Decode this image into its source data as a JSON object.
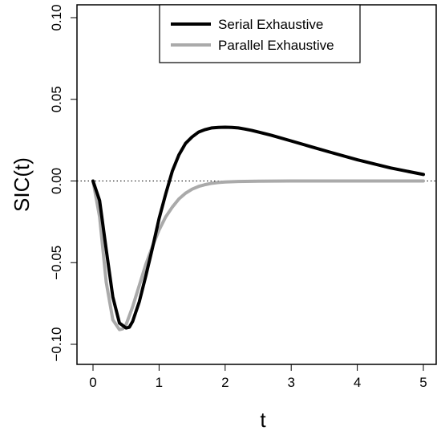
{
  "chart_data": {
    "type": "line",
    "title": "",
    "xlabel": "t",
    "ylabel": "SIC(t)",
    "xlim": [
      0,
      5
    ],
    "ylim": [
      -0.1,
      0.1
    ],
    "x_ticks": [
      "0",
      "1",
      "2",
      "3",
      "4",
      "5"
    ],
    "y_ticks": [
      "−0.10",
      "−0.05",
      "0.00",
      "0.05",
      "0.10"
    ],
    "reference_line": {
      "y": 0,
      "style": "dotted"
    },
    "legend_position": "top-right",
    "series": [
      {
        "name": "Serial Exhaustive",
        "color": "#000000",
        "x": [
          0,
          0.1,
          0.2,
          0.3,
          0.4,
          0.5,
          0.55,
          0.6,
          0.7,
          0.8,
          0.9,
          1.0,
          1.1,
          1.2,
          1.3,
          1.4,
          1.5,
          1.6,
          1.7,
          1.8,
          1.9,
          2.0,
          2.1,
          2.2,
          2.3,
          2.4,
          2.5,
          2.7,
          3.0,
          3.3,
          3.6,
          4.0,
          4.5,
          5.0
        ],
        "y": [
          0,
          -0.012,
          -0.042,
          -0.071,
          -0.087,
          -0.09,
          -0.0895,
          -0.086,
          -0.074,
          -0.058,
          -0.041,
          -0.023,
          -0.008,
          0.006,
          0.016,
          0.023,
          0.027,
          0.03,
          0.0315,
          0.0325,
          0.0328,
          0.0329,
          0.0328,
          0.0325,
          0.0318,
          0.031,
          0.03,
          0.028,
          0.0245,
          0.021,
          0.0175,
          0.013,
          0.008,
          0.004
        ]
      },
      {
        "name": "Parallel Exhaustive",
        "color": "#aaaaaa",
        "x": [
          0,
          0.1,
          0.2,
          0.3,
          0.4,
          0.45,
          0.5,
          0.6,
          0.7,
          0.8,
          0.9,
          1.0,
          1.1,
          1.2,
          1.3,
          1.4,
          1.5,
          1.6,
          1.7,
          1.8,
          1.9,
          2.0,
          2.2,
          2.5,
          3.0,
          4.0,
          5.0
        ],
        "y": [
          0,
          -0.022,
          -0.062,
          -0.085,
          -0.091,
          -0.0905,
          -0.088,
          -0.077,
          -0.064,
          -0.051,
          -0.04,
          -0.03,
          -0.022,
          -0.016,
          -0.011,
          -0.0075,
          -0.005,
          -0.0033,
          -0.0022,
          -0.0014,
          -0.0009,
          -0.0006,
          -0.0003,
          -0.0001,
          0,
          0,
          0
        ]
      }
    ]
  }
}
